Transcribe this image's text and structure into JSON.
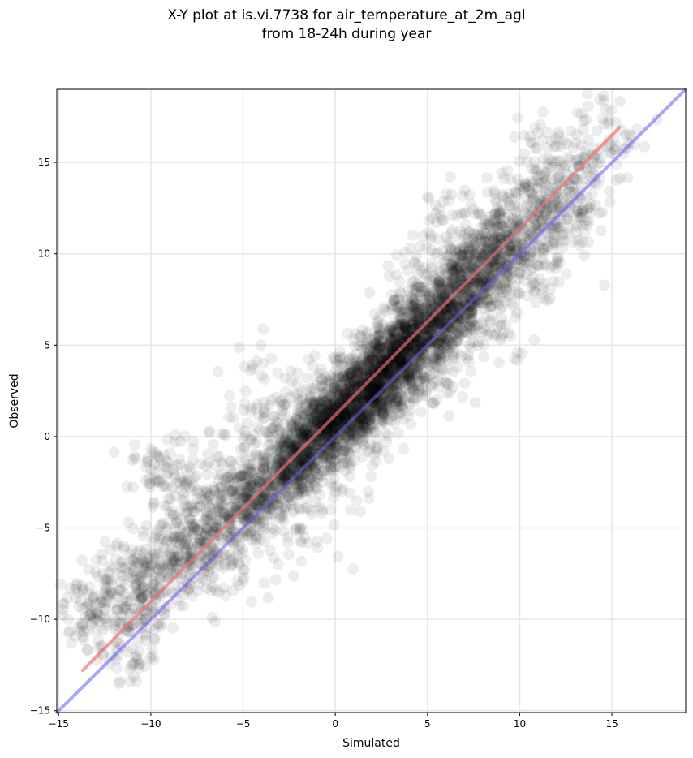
{
  "chart_data": {
    "type": "scatter",
    "title": "X-Y plot at is.vi.7738 for air_temperature_at_2m_agl",
    "subtitle": "from 18-24h during year",
    "xlabel": "Simulated",
    "ylabel": "Observed",
    "xlim": [
      -15.1,
      19.0
    ],
    "ylim": [
      -15.1,
      19.0
    ],
    "xticks": [
      -15,
      -10,
      -5,
      0,
      5,
      10,
      15
    ],
    "yticks": [
      -15,
      -10,
      -5,
      0,
      5,
      10,
      15
    ],
    "xtick_labels": [
      "−15",
      "−10",
      "−5",
      "0",
      "5",
      "10",
      "15"
    ],
    "ytick_labels": [
      "−15",
      "−10",
      "−5",
      "0",
      "5",
      "10",
      "15"
    ],
    "grid": true,
    "points_color": "#000000",
    "points_opacity": 0.07,
    "points": [
      [
        -13.7,
        -9.4
      ],
      [
        -13.4,
        -8.6
      ],
      [
        -13.0,
        -9.7
      ],
      [
        -12.9,
        -10.6
      ],
      [
        -12.6,
        -10.6
      ],
      [
        -12.4,
        -9.0
      ],
      [
        -11.8,
        -7.5
      ],
      [
        -11.6,
        -8.4
      ],
      [
        -11.2,
        -10.2
      ],
      [
        -11.0,
        -11.6
      ],
      [
        -10.9,
        -12.4
      ],
      [
        -10.8,
        -8.3
      ],
      [
        -10.6,
        -9.2
      ],
      [
        -10.4,
        -7.4
      ],
      [
        -10.2,
        -6.9
      ],
      [
        -9.9,
        -7.8
      ],
      [
        -9.7,
        -8.9
      ],
      [
        -9.6,
        -6.4
      ],
      [
        -9.5,
        -2.4
      ],
      [
        -9.3,
        -1.6
      ],
      [
        -9.1,
        -5.1
      ],
      [
        -8.9,
        -6.6
      ],
      [
        -8.7,
        -7.6
      ],
      [
        -8.6,
        -4.7
      ],
      [
        -8.4,
        -5.9
      ],
      [
        -8.2,
        -2.5
      ],
      [
        -8.0,
        -5.2
      ],
      [
        -7.8,
        -6.8
      ],
      [
        -7.6,
        -4.1
      ],
      [
        -7.4,
        -5.8
      ],
      [
        -7.2,
        -3.5
      ],
      [
        -7.1,
        -6.1
      ],
      [
        -6.9,
        -4.6
      ],
      [
        -6.7,
        -7.2
      ],
      [
        -6.5,
        -5.4
      ],
      [
        -6.3,
        -1.1
      ],
      [
        -6.2,
        -3.9
      ],
      [
        -6.0,
        -6.5
      ],
      [
        -5.8,
        -4.8
      ],
      [
        -5.6,
        -2.9
      ],
      [
        -5.5,
        -5.7
      ],
      [
        -5.3,
        -3.6
      ],
      [
        -5.1,
        -4.2
      ],
      [
        -4.9,
        -2.1
      ],
      [
        -4.8,
        -5.1
      ],
      [
        -4.6,
        -3.3
      ],
      [
        -4.4,
        -0.4
      ],
      [
        -4.3,
        -2.6
      ],
      [
        -4.1,
        -4.5
      ],
      [
        -3.9,
        -1.7
      ],
      [
        -3.8,
        -3.1
      ],
      [
        -3.6,
        -0.9
      ],
      [
        -3.4,
        -2.3
      ],
      [
        -3.3,
        1.1
      ],
      [
        -3.1,
        -1.3
      ],
      [
        -2.9,
        -3.4
      ],
      [
        -2.8,
        -0.2
      ],
      [
        -2.6,
        -1.9
      ],
      [
        -2.4,
        0.8
      ],
      [
        -2.3,
        -0.7
      ],
      [
        -2.1,
        -2.6
      ],
      [
        -1.9,
        0.3
      ],
      [
        -1.8,
        -1.1
      ],
      [
        -1.6,
        1.6
      ],
      [
        -1.4,
        0.1
      ],
      [
        -1.3,
        -1.5
      ],
      [
        -1.1,
        2.4
      ],
      [
        -0.9,
        0.7
      ],
      [
        -0.8,
        -0.3
      ],
      [
        -0.6,
        1.9
      ],
      [
        -0.4,
        0.4
      ],
      [
        -0.3,
        -1.2
      ],
      [
        -0.1,
        1.2
      ],
      [
        0.1,
        2.8
      ],
      [
        0.2,
        0.2
      ],
      [
        0.4,
        1.6
      ],
      [
        0.6,
        -0.6
      ],
      [
        0.7,
        3.3
      ],
      [
        0.9,
        1.1
      ],
      [
        1.1,
        2.1
      ],
      [
        1.2,
        -0.1
      ],
      [
        1.4,
        4.0
      ],
      [
        1.6,
        1.5
      ],
      [
        1.7,
        2.9
      ],
      [
        1.9,
        0.6
      ],
      [
        2.1,
        3.6
      ],
      [
        2.2,
        2.0
      ],
      [
        2.4,
        4.8
      ],
      [
        2.6,
        1.3
      ],
      [
        2.7,
        3.1
      ],
      [
        2.9,
        5.7
      ],
      [
        3.1,
        2.4
      ],
      [
        3.2,
        4.2
      ],
      [
        3.4,
        1.6
      ],
      [
        3.6,
        6.2
      ],
      [
        3.7,
        3.5
      ],
      [
        3.9,
        5.0
      ],
      [
        4.1,
        2.9
      ],
      [
        4.2,
        7.1
      ],
      [
        4.4,
        4.4
      ],
      [
        4.6,
        5.9
      ],
      [
        4.7,
        3.2
      ],
      [
        4.9,
        7.8
      ],
      [
        5.1,
        5.2
      ],
      [
        5.2,
        6.6
      ],
      [
        5.4,
        4.1
      ],
      [
        5.6,
        8.5
      ],
      [
        5.7,
        5.8
      ],
      [
        5.9,
        7.3
      ],
      [
        6.1,
        4.9
      ],
      [
        6.2,
        9.2
      ],
      [
        6.4,
        6.5
      ],
      [
        6.6,
        8.1
      ],
      [
        6.7,
        5.6
      ],
      [
        6.9,
        9.9
      ],
      [
        7.1,
        7.2
      ],
      [
        7.2,
        8.8
      ],
      [
        7.4,
        6.3
      ],
      [
        7.6,
        10.6
      ],
      [
        7.7,
        8.0
      ],
      [
        7.9,
        9.6
      ],
      [
        8.1,
        7.0
      ],
      [
        8.2,
        11.5
      ],
      [
        8.4,
        8.7
      ],
      [
        8.6,
        10.3
      ],
      [
        8.7,
        7.6
      ],
      [
        8.9,
        12.1
      ],
      [
        9.1,
        9.5
      ],
      [
        9.2,
        11.0
      ],
      [
        9.4,
        8.8
      ],
      [
        9.6,
        13.0
      ],
      [
        9.7,
        10.2
      ],
      [
        9.9,
        11.8
      ],
      [
        10.1,
        9.6
      ],
      [
        10.3,
        13.8
      ],
      [
        10.4,
        11.0
      ],
      [
        10.6,
        12.6
      ],
      [
        10.8,
        10.1
      ],
      [
        11.0,
        14.6
      ],
      [
        11.2,
        11.8
      ],
      [
        11.4,
        13.4
      ],
      [
        11.6,
        10.9
      ],
      [
        11.9,
        15.0
      ],
      [
        12.1,
        12.5
      ],
      [
        12.4,
        14.0
      ],
      [
        12.6,
        12.0
      ],
      [
        12.9,
        15.8
      ],
      [
        13.2,
        13.2
      ],
      [
        13.6,
        14.7
      ],
      [
        14.0,
        15.8
      ],
      [
        14.5,
        17.4
      ],
      [
        15.1,
        16.3
      ],
      [
        -4.7,
        -3.0
      ],
      [
        -4.5,
        -3.5
      ],
      [
        -5.0,
        -3.3
      ],
      [
        -4.2,
        -2.8
      ],
      [
        -0.5,
        0.2
      ],
      [
        -0.2,
        0.6
      ],
      [
        0.3,
        0.9
      ],
      [
        0.5,
        0.4
      ],
      [
        1.0,
        1.4
      ],
      [
        1.5,
        2.0
      ],
      [
        2.0,
        2.3
      ],
      [
        2.5,
        2.8
      ],
      [
        3.0,
        3.6
      ],
      [
        3.5,
        4.1
      ],
      [
        4.0,
        4.8
      ],
      [
        4.5,
        5.2
      ],
      [
        5.0,
        5.8
      ],
      [
        5.5,
        6.3
      ],
      [
        6.0,
        6.9
      ],
      [
        6.5,
        7.4
      ],
      [
        7.0,
        8.1
      ],
      [
        7.5,
        8.6
      ],
      [
        8.0,
        9.3
      ],
      [
        8.5,
        9.9
      ],
      [
        9.0,
        10.5
      ],
      [
        -6.5,
        -5.0
      ],
      [
        -7.5,
        -6.0
      ],
      [
        -8.5,
        -7.0
      ],
      [
        -9.5,
        -7.8
      ],
      [
        -10.5,
        -8.9
      ],
      [
        -11.0,
        -9.4
      ],
      [
        -3.5,
        -2.2
      ],
      [
        -2.5,
        -1.2
      ],
      [
        -1.5,
        -0.5
      ],
      [
        0.0,
        1.0
      ],
      [
        1.8,
        2.6
      ],
      [
        2.8,
        3.9
      ],
      [
        3.8,
        4.6
      ],
      [
        4.8,
        6.0
      ],
      [
        5.8,
        7.0
      ],
      [
        6.8,
        8.0
      ],
      [
        7.8,
        9.0
      ],
      [
        8.8,
        10.2
      ],
      [
        9.8,
        11.2
      ],
      [
        10.8,
        12.4
      ],
      [
        11.8,
        13.6
      ],
      [
        -2.0,
        -1.5
      ],
      [
        -1.0,
        0.9
      ],
      [
        1.3,
        0.5
      ],
      [
        2.3,
        1.9
      ],
      [
        3.3,
        2.7
      ],
      [
        4.3,
        3.8
      ],
      [
        5.3,
        5.5
      ],
      [
        6.3,
        5.4
      ],
      [
        7.3,
        7.6
      ],
      [
        8.3,
        8.3
      ],
      [
        9.3,
        9.0
      ],
      [
        10.3,
        10.6
      ],
      [
        12.8,
        12.8
      ],
      [
        13.5,
        14.1
      ],
      [
        6.0,
        3.0
      ],
      [
        9.1,
        5.6
      ],
      [
        11.1,
        8.6
      ],
      [
        -5.2,
        -7.0
      ],
      [
        -2.8,
        -5.2
      ],
      [
        -1.9,
        -5.7
      ],
      [
        0.8,
        -3.1
      ],
      [
        2.2,
        -0.6
      ],
      [
        -3.9,
        4.0
      ],
      [
        -4.9,
        1.8
      ],
      [
        -8.4,
        -1.5
      ],
      [
        -9.8,
        -1.5
      ],
      [
        3.5,
        7.9
      ],
      [
        5.5,
        11.7
      ],
      [
        4.6,
        10.4
      ],
      [
        6.6,
        12.1
      ],
      [
        -12.0,
        -11.4
      ],
      [
        -12.3,
        -8.7
      ],
      [
        -10.6,
        -6.2
      ],
      [
        12.3,
        11.0
      ],
      [
        13.4,
        12.0
      ],
      [
        10.6,
        16.1
      ]
    ],
    "lines": [
      {
        "color": "#f07070",
        "opacity": 0.65,
        "from": [
          -13.7,
          -12.8
        ],
        "to": [
          15.4,
          16.9
        ]
      },
      {
        "color": "#6060f0",
        "opacity": 0.55,
        "from": [
          -15.1,
          -15.1
        ],
        "to": [
          19.0,
          19.0
        ]
      }
    ]
  }
}
